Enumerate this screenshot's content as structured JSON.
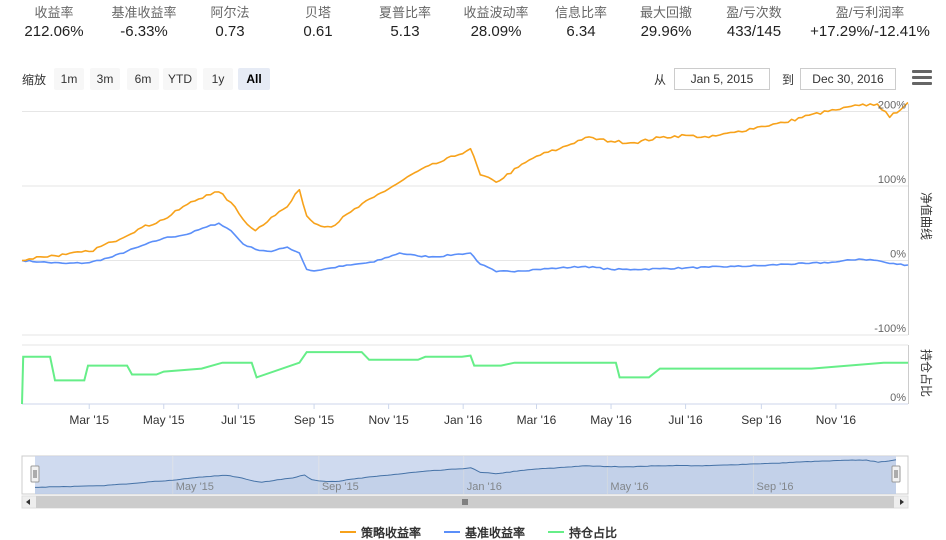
{
  "stats": [
    {
      "label": "收益率",
      "value": "212.06%"
    },
    {
      "label": "基准收益率",
      "value": "-6.33%"
    },
    {
      "label": "阿尔法",
      "value": "0.73"
    },
    {
      "label": "贝塔",
      "value": "0.61"
    },
    {
      "label": "夏普比率",
      "value": "5.13"
    },
    {
      "label": "收益波动率",
      "value": "28.09%"
    },
    {
      "label": "信息比率",
      "value": "6.34"
    },
    {
      "label": "最大回撤",
      "value": "29.96%"
    },
    {
      "label": "盈/亏次数",
      "value": "433/145"
    },
    {
      "label": "盈/亏利润率",
      "value": "+17.29%/-12.41%"
    }
  ],
  "toolbar": {
    "zoom_label": "缩放",
    "zoom_buttons": [
      "1m",
      "3m",
      "6m",
      "YTD",
      "1y",
      "All"
    ],
    "active_zoom": "All",
    "from_label": "从",
    "from_date": "Jan 5, 2015",
    "to_label": "到",
    "to_date": "Dec 30, 2016",
    "menu_icon": "hamburger-menu-icon"
  },
  "colors": {
    "strategy": "#f7a21b",
    "benchmark": "#5b8ff9",
    "position": "#66ee88",
    "navigator_fill": "#c7d3ec"
  },
  "chart_data": [
    {
      "type": "line",
      "ylabel": "净值曲线",
      "y_tick_labels": [
        "-100%",
        "0%",
        "100%",
        "200%"
      ],
      "y_ticks": [
        -100,
        0,
        100,
        200
      ],
      "ylim": [
        -100,
        210
      ],
      "grid": true,
      "x_range": [
        "2015-01-05",
        "2016-12-30"
      ],
      "x_tick_labels": [
        "Mar '15",
        "May '15",
        "Jul '15",
        "Sep '15",
        "Nov '15",
        "Jan '16",
        "Mar '16",
        "May '16",
        "Jul '16",
        "Sep '16",
        "Nov '16"
      ],
      "x_ticks": [
        "2015-03-01",
        "2015-05-01",
        "2015-07-01",
        "2015-09-01",
        "2015-11-01",
        "2016-01-01",
        "2016-03-01",
        "2016-05-01",
        "2016-07-01",
        "2016-09-01",
        "2016-11-01"
      ],
      "series": [
        {
          "name": "策略收益率",
          "key": "strategy",
          "x": [
            "2015-01-05",
            "2015-01-20",
            "2015-02-10",
            "2015-03-01",
            "2015-03-20",
            "2015-04-10",
            "2015-05-01",
            "2015-05-20",
            "2015-06-05",
            "2015-06-15",
            "2015-06-25",
            "2015-07-05",
            "2015-07-15",
            "2015-07-28",
            "2015-08-10",
            "2015-08-20",
            "2015-08-26",
            "2015-09-01",
            "2015-09-15",
            "2015-10-01",
            "2015-10-20",
            "2015-11-10",
            "2015-11-25",
            "2015-12-10",
            "2015-12-25",
            "2016-01-07",
            "2016-01-15",
            "2016-01-28",
            "2016-02-15",
            "2016-03-01",
            "2016-03-20",
            "2016-04-10",
            "2016-05-01",
            "2016-05-20",
            "2016-06-10",
            "2016-07-01",
            "2016-07-20",
            "2016-08-10",
            "2016-09-01",
            "2016-09-20",
            "2016-10-10",
            "2016-11-01",
            "2016-11-20",
            "2016-12-05",
            "2016-12-15",
            "2016-12-30"
          ],
          "values": [
            0,
            5,
            8,
            12,
            25,
            42,
            55,
            75,
            88,
            92,
            78,
            55,
            40,
            58,
            72,
            95,
            60,
            50,
            45,
            65,
            85,
            105,
            120,
            130,
            140,
            150,
            115,
            105,
            125,
            140,
            150,
            165,
            160,
            158,
            165,
            168,
            165,
            172,
            180,
            185,
            195,
            202,
            208,
            210,
            192,
            212
          ]
        },
        {
          "name": "基准收益率",
          "key": "benchmark",
          "x": [
            "2015-01-05",
            "2015-01-20",
            "2015-02-10",
            "2015-03-01",
            "2015-03-20",
            "2015-04-10",
            "2015-05-01",
            "2015-05-20",
            "2015-06-05",
            "2015-06-15",
            "2015-06-25",
            "2015-07-05",
            "2015-07-15",
            "2015-07-28",
            "2015-08-10",
            "2015-08-20",
            "2015-08-26",
            "2015-09-01",
            "2015-09-15",
            "2015-10-01",
            "2015-10-20",
            "2015-11-10",
            "2015-11-25",
            "2015-12-10",
            "2015-12-25",
            "2016-01-07",
            "2016-01-15",
            "2016-01-28",
            "2016-02-15",
            "2016-03-01",
            "2016-03-20",
            "2016-04-10",
            "2016-05-01",
            "2016-05-20",
            "2016-06-10",
            "2016-07-01",
            "2016-07-20",
            "2016-08-10",
            "2016-09-01",
            "2016-09-20",
            "2016-10-10",
            "2016-11-01",
            "2016-11-20",
            "2016-12-05",
            "2016-12-15",
            "2016-12-30"
          ],
          "values": [
            0,
            -2,
            -4,
            -3,
            5,
            18,
            30,
            35,
            45,
            50,
            40,
            22,
            15,
            12,
            18,
            10,
            -12,
            -14,
            -10,
            -6,
            -2,
            10,
            6,
            5,
            8,
            10,
            -5,
            -15,
            -14,
            -12,
            -10,
            -8,
            -12,
            -12,
            -11,
            -10,
            -9,
            -8,
            -7,
            -5,
            -4,
            -2,
            2,
            0,
            -4,
            -6
          ]
        }
      ]
    },
    {
      "type": "area",
      "ylabel": "持仓占比",
      "y_tick_labels": [
        "0%"
      ],
      "y_ticks": [
        0
      ],
      "ylim": [
        0,
        100
      ],
      "series": [
        {
          "name": "持仓占比",
          "key": "position",
          "x": [
            "2015-01-05",
            "2015-01-06",
            "2015-01-28",
            "2015-02-01",
            "2015-02-25",
            "2015-02-28",
            "2015-04-01",
            "2015-04-05",
            "2015-04-25",
            "2015-05-01",
            "2015-06-01",
            "2015-06-18",
            "2015-07-12",
            "2015-07-16",
            "2015-08-20",
            "2015-08-26",
            "2015-10-10",
            "2015-10-16",
            "2015-11-25",
            "2015-12-01",
            "2015-12-31",
            "2016-01-07",
            "2016-01-10",
            "2016-02-01",
            "2016-02-12",
            "2016-05-05",
            "2016-05-08",
            "2016-06-01",
            "2016-06-10",
            "2016-10-01",
            "2016-10-12",
            "2016-12-10",
            "2016-12-30"
          ],
          "values": [
            0,
            80,
            80,
            40,
            40,
            65,
            65,
            50,
            50,
            55,
            60,
            70,
            70,
            45,
            70,
            88,
            88,
            75,
            75,
            80,
            80,
            82,
            65,
            65,
            70,
            70,
            45,
            45,
            60,
            60,
            60,
            70,
            70
          ]
        }
      ]
    },
    {
      "type": "area",
      "role": "navigator",
      "x_tick_labels": [
        "May '15",
        "Sep '15",
        "Jan '16",
        "May '16",
        "Sep '16"
      ],
      "x_ticks": [
        "2015-05-01",
        "2015-09-01",
        "2016-01-01",
        "2016-05-01",
        "2016-09-01"
      ],
      "series_ref": "strategy"
    }
  ],
  "legend": [
    {
      "name": "策略收益率",
      "key": "strategy"
    },
    {
      "name": "基准收益率",
      "key": "benchmark"
    },
    {
      "name": "持仓占比",
      "key": "position"
    }
  ]
}
